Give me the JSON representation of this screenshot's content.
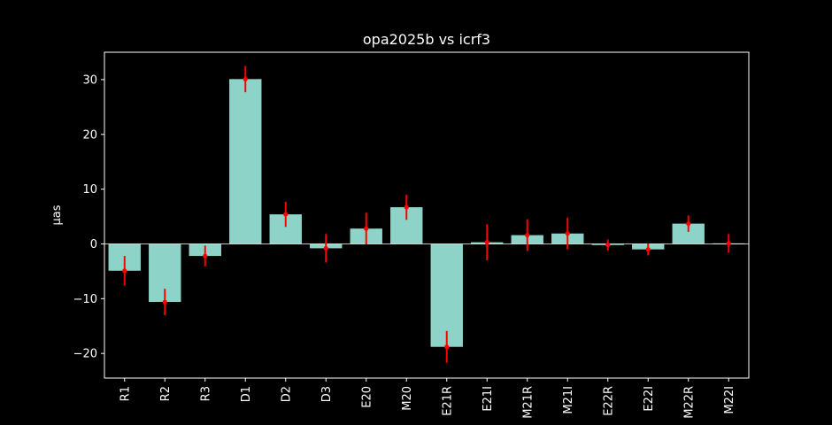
{
  "chart_data": {
    "type": "bar",
    "title": "opa2025b vs icrf3",
    "xlabel": "",
    "ylabel": "μas",
    "ylim": [
      -24.5,
      35.0
    ],
    "yticks": [
      -20,
      -10,
      0,
      10,
      20,
      30
    ],
    "ytick_labels": [
      "−20",
      "−10",
      "0",
      "10",
      "20",
      "30"
    ],
    "categories": [
      "R1",
      "R2",
      "R3",
      "D1",
      "D2",
      "D3",
      "E20",
      "M20",
      "E21R",
      "E21I",
      "M21R",
      "M21I",
      "E22R",
      "E22I",
      "M22R",
      "M22I"
    ],
    "values": [
      -4.9,
      -10.6,
      -2.2,
      30.1,
      5.4,
      -0.8,
      2.8,
      6.7,
      -18.8,
      0.3,
      1.6,
      1.9,
      -0.2,
      -1.0,
      3.7,
      0.1
    ],
    "errors": [
      2.7,
      2.4,
      1.9,
      2.4,
      2.3,
      2.6,
      2.9,
      2.3,
      2.9,
      3.3,
      2.9,
      2.9,
      1.0,
      1.1,
      1.5,
      1.7
    ],
    "grid": false,
    "legend": "none",
    "colors": {
      "background": "#000000",
      "bar": "#8dd3c7",
      "error": "#ff0000",
      "axes": "#ffffff",
      "zero_line": "#ffffff"
    }
  }
}
